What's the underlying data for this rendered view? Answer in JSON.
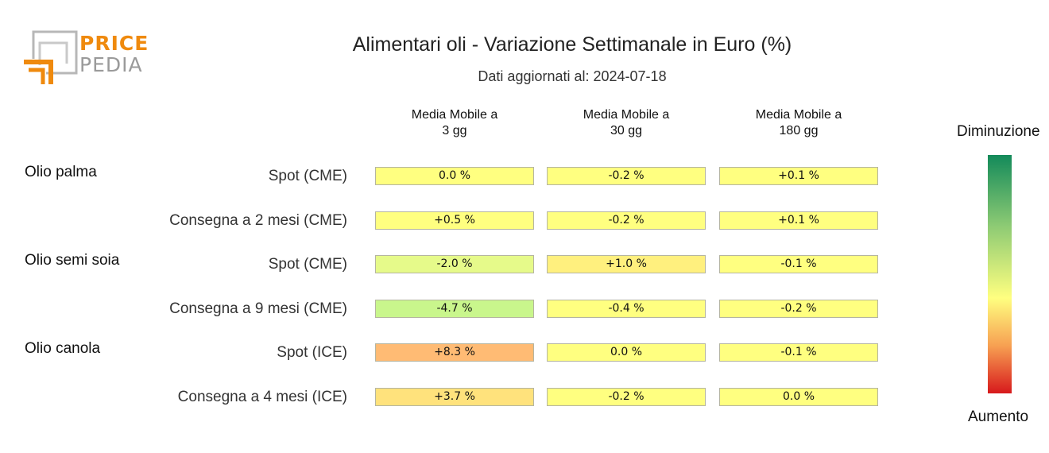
{
  "logo": {
    "line1": "PRICE",
    "line2": "PEDIA",
    "colors": {
      "orange": "#ef8a0e",
      "gray": "#9a9a9a"
    }
  },
  "title": "Alimentari oli - Variazione Settimanale in Euro (%)",
  "subtitle": "Dati aggiornati al: 2024-07-18",
  "legend": {
    "top": "Diminuzione",
    "bottom": "Aumento",
    "scale_colors": [
      "#138a5a",
      "#8ecb74",
      "#ffff80",
      "#f7a052",
      "#d7191c"
    ]
  },
  "chart_data": {
    "type": "table",
    "columns": [
      "Media Mobile a\n3 gg",
      "Media Mobile a\n30 gg",
      "Media Mobile a\n180 gg"
    ],
    "groups": [
      "Olio palma",
      "Olio semi soia",
      "Olio canola"
    ],
    "rows": [
      {
        "group": "Olio palma",
        "label": "Spot (CME)",
        "values": [
          0.0,
          -0.2,
          0.1
        ],
        "display": [
          "0.0 %",
          "-0.2 %",
          "+0.1 %"
        ]
      },
      {
        "group": "Olio palma",
        "label": "Consegna a 2 mesi (CME)",
        "values": [
          0.5,
          -0.2,
          0.1
        ],
        "display": [
          "+0.5 %",
          "-0.2 %",
          "+0.1 %"
        ]
      },
      {
        "group": "Olio semi soia",
        "label": "Spot (CME)",
        "values": [
          -2.0,
          1.0,
          -0.1
        ],
        "display": [
          "-2.0 %",
          "+1.0 %",
          "-0.1 %"
        ]
      },
      {
        "group": "Olio semi soia",
        "label": "Consegna a 9 mesi (CME)",
        "values": [
          -4.7,
          -0.4,
          -0.2
        ],
        "display": [
          "-4.7 %",
          "-0.4 %",
          "-0.2 %"
        ]
      },
      {
        "group": "Olio canola",
        "label": "Spot (ICE)",
        "values": [
          8.3,
          0.0,
          -0.1
        ],
        "display": [
          "+8.3 %",
          "0.0 %",
          "-0.1 %"
        ]
      },
      {
        "group": "Olio canola",
        "label": "Consegna a 4 mesi (ICE)",
        "values": [
          3.7,
          -0.2,
          0.0
        ],
        "display": [
          "+3.7 %",
          "-0.2 %",
          "0.0 %"
        ]
      }
    ],
    "cell_colors": [
      [
        "#ffff80",
        "#ffff80",
        "#ffff80"
      ],
      [
        "#ffff80",
        "#ffff80",
        "#ffff80"
      ],
      [
        "#e6fa8a",
        "#fff07e",
        "#ffff80"
      ],
      [
        "#c9f68c",
        "#ffff80",
        "#ffff80"
      ],
      [
        "#ffbb74",
        "#ffff80",
        "#ffff80"
      ],
      [
        "#ffe27c",
        "#ffff80",
        "#ffff80"
      ]
    ]
  }
}
